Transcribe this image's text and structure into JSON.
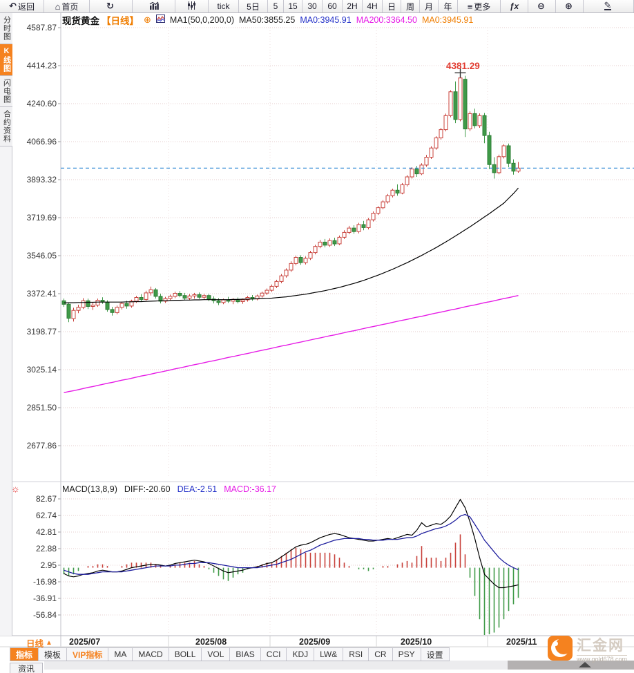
{
  "toolbar": {
    "back": "返回",
    "home": "首页",
    "tick": "tick",
    "d5": "5日",
    "m5": "5",
    "m15": "15",
    "m30": "30",
    "m60": "60",
    "h2": "2H",
    "h4": "4H",
    "day": "日",
    "week": "周",
    "month": "月",
    "year": "年",
    "more": "更多",
    "fx": "ƒx",
    "back_icon": "↶",
    "home_icon": "⌂",
    "refresh_icon": "↻",
    "menu_icon": "≡",
    "zoom_out_icon": "⊖",
    "zoom_in_icon": "⊕",
    "pen_icon": "✎"
  },
  "sidebar": {
    "tabs": [
      {
        "label": "分时图",
        "active": false
      },
      {
        "label": "K线图",
        "active": true
      },
      {
        "label": "闪电图",
        "active": false
      },
      {
        "label": "合约资料",
        "active": false
      }
    ],
    "news_tab": "资讯"
  },
  "legend": {
    "symbol": "现货黄金",
    "period": "【日线】",
    "add_icon": "⊕",
    "ma_group": "MA1(50,0,200,0)",
    "ma50": "MA50:3855.25",
    "ma0_blue": "MA0:3945.91",
    "ma200": "MA200:3364.50",
    "ma0_orange": "MA0:3945.91"
  },
  "macd_legend": {
    "name": "MACD(13,8,9)",
    "diff": "DIFF:-20.60",
    "dea": "DEA:-2.51",
    "macd": "MACD:-36.17"
  },
  "bottom_bar": {
    "period_flag": "日线",
    "period_flag_arrow": "▲",
    "tabs": [
      {
        "label": "指标",
        "state": "active"
      },
      {
        "label": "模板",
        "state": "normal"
      },
      {
        "label": "VIP指标",
        "state": "vip"
      },
      {
        "label": "MA",
        "state": "normal"
      },
      {
        "label": "MACD",
        "state": "normal"
      },
      {
        "label": "BOLL",
        "state": "normal"
      },
      {
        "label": "VOL",
        "state": "normal"
      },
      {
        "label": "BIAS",
        "state": "normal"
      },
      {
        "label": "CCI",
        "state": "normal"
      },
      {
        "label": "KDJ",
        "state": "normal"
      },
      {
        "label": "LW&",
        "state": "normal"
      },
      {
        "label": "RSI",
        "state": "normal"
      },
      {
        "label": "CR",
        "state": "normal"
      },
      {
        "label": "PSY",
        "state": "normal"
      },
      {
        "label": "设置",
        "state": "normal"
      }
    ]
  },
  "brand": {
    "name": "汇金网",
    "url": "www.gold678.com"
  },
  "colors": {
    "up": "#c8403a",
    "down": "#3f9a48",
    "down_edge": "#2e7d36",
    "ma50": "#000000",
    "ma200": "#e61ae6",
    "price_line": "#2f87d5",
    "diff": "#000000",
    "dea": "#1f1f9e",
    "hist_pos": "#c8403a",
    "hist_neg": "#3f9a48",
    "grid": "#e4cccc",
    "accent": "#f5821f"
  },
  "chart_data": [
    {
      "type": "candlestick",
      "title": "现货黄金【日线】",
      "yticks": [
        4587.87,
        4414.23,
        4240.6,
        4066.96,
        3893.32,
        3719.69,
        3546.05,
        3372.41,
        3198.77,
        3025.14,
        2851.5,
        2677.86
      ],
      "ylim": [
        2677.86,
        4587.87
      ],
      "x_labels": [
        "2025/07",
        "2025/08",
        "2025/09",
        "2025/10",
        "2025/11"
      ],
      "month_start_indices": [
        0,
        22,
        43,
        65,
        88
      ],
      "last_price": 3945.91,
      "peak_annotation": {
        "label": "4381.29",
        "index": 82,
        "value": 4381.29
      },
      "candles": [
        [
          3340,
          3350,
          3312,
          3324
        ],
        [
          3324,
          3332,
          3242,
          3260
        ],
        [
          3258,
          3308,
          3245,
          3296
        ],
        [
          3296,
          3322,
          3283,
          3310
        ],
        [
          3310,
          3352,
          3302,
          3340
        ],
        [
          3340,
          3350,
          3302,
          3314
        ],
        [
          3314,
          3332,
          3298,
          3320
        ],
        [
          3320,
          3350,
          3312,
          3342
        ],
        [
          3342,
          3356,
          3326,
          3334
        ],
        [
          3334,
          3342,
          3290,
          3300
        ],
        [
          3300,
          3312,
          3272,
          3286
        ],
        [
          3286,
          3318,
          3278,
          3310
        ],
        [
          3310,
          3336,
          3300,
          3328
        ],
        [
          3328,
          3340,
          3304,
          3316
        ],
        [
          3316,
          3345,
          3308,
          3338
        ],
        [
          3338,
          3362,
          3330,
          3355
        ],
        [
          3355,
          3370,
          3336,
          3346
        ],
        [
          3346,
          3386,
          3340,
          3376
        ],
        [
          3376,
          3405,
          3364,
          3390
        ],
        [
          3390,
          3398,
          3350,
          3360
        ],
        [
          3360,
          3372,
          3328,
          3338
        ],
        [
          3338,
          3358,
          3330,
          3350
        ],
        [
          3350,
          3368,
          3340,
          3360
        ],
        [
          3360,
          3382,
          3352,
          3374
        ],
        [
          3374,
          3384,
          3356,
          3364
        ],
        [
          3364,
          3376,
          3342,
          3352
        ],
        [
          3352,
          3370,
          3344,
          3362
        ],
        [
          3362,
          3376,
          3350,
          3368
        ],
        [
          3368,
          3378,
          3348,
          3356
        ],
        [
          3356,
          3372,
          3346,
          3364
        ],
        [
          3364,
          3372,
          3338,
          3348
        ],
        [
          3348,
          3360,
          3328,
          3340
        ],
        [
          3340,
          3352,
          3320,
          3332
        ],
        [
          3332,
          3350,
          3324,
          3344
        ],
        [
          3344,
          3358,
          3330,
          3338
        ],
        [
          3338,
          3352,
          3324,
          3346
        ],
        [
          3346,
          3355,
          3328,
          3336
        ],
        [
          3336,
          3350,
          3326,
          3344
        ],
        [
          3344,
          3362,
          3336,
          3355
        ],
        [
          3355,
          3366,
          3340,
          3348
        ],
        [
          3348,
          3368,
          3342,
          3362
        ],
        [
          3362,
          3382,
          3354,
          3375
        ],
        [
          3375,
          3396,
          3366,
          3388
        ],
        [
          3388,
          3414,
          3380,
          3406
        ],
        [
          3406,
          3436,
          3398,
          3428
        ],
        [
          3428,
          3462,
          3420,
          3454
        ],
        [
          3454,
          3488,
          3446,
          3480
        ],
        [
          3480,
          3520,
          3472,
          3510
        ],
        [
          3510,
          3546,
          3502,
          3538
        ],
        [
          3538,
          3548,
          3504,
          3514
        ],
        [
          3514,
          3542,
          3506,
          3534
        ],
        [
          3534,
          3568,
          3526,
          3560
        ],
        [
          3560,
          3596,
          3552,
          3588
        ],
        [
          3588,
          3618,
          3580,
          3608
        ],
        [
          3608,
          3622,
          3584,
          3594
        ],
        [
          3594,
          3625,
          3586,
          3615
        ],
        [
          3615,
          3628,
          3590,
          3600
        ],
        [
          3600,
          3638,
          3594,
          3630
        ],
        [
          3630,
          3662,
          3622,
          3652
        ],
        [
          3652,
          3682,
          3644,
          3672
        ],
        [
          3672,
          3685,
          3646,
          3656
        ],
        [
          3656,
          3696,
          3648,
          3688
        ],
        [
          3688,
          3705,
          3662,
          3674
        ],
        [
          3674,
          3718,
          3666,
          3710
        ],
        [
          3710,
          3748,
          3702,
          3740
        ],
        [
          3740,
          3772,
          3732,
          3765
        ],
        [
          3765,
          3800,
          3758,
          3792
        ],
        [
          3792,
          3828,
          3784,
          3820
        ],
        [
          3820,
          3852,
          3812,
          3845
        ],
        [
          3845,
          3872,
          3820,
          3832
        ],
        [
          3832,
          3878,
          3826,
          3870
        ],
        [
          3870,
          3914,
          3862,
          3906
        ],
        [
          3906,
          3950,
          3898,
          3942
        ],
        [
          3942,
          3956,
          3906,
          3920
        ],
        [
          3920,
          3968,
          3914,
          3960
        ],
        [
          3960,
          4006,
          3952,
          3996
        ],
        [
          3996,
          4046,
          3988,
          4038
        ],
        [
          4038,
          4092,
          4030,
          4084
        ],
        [
          4084,
          4130,
          4076,
          4122
        ],
        [
          4122,
          4195,
          4114,
          4186
        ],
        [
          4186,
          4302,
          4178,
          4295
        ],
        [
          4295,
          4342,
          4152,
          4168
        ],
        [
          4168,
          4381,
          4160,
          4358
        ],
        [
          4352,
          4368,
          4088,
          4125
        ],
        [
          4125,
          4205,
          4115,
          4195
        ],
        [
          4195,
          4218,
          4128,
          4140
        ],
        [
          4140,
          4196,
          4130,
          4186
        ],
        [
          4186,
          4198,
          4060,
          4095
        ],
        [
          4095,
          4112,
          3942,
          3962
        ],
        [
          3962,
          3996,
          3898,
          3925
        ],
        [
          3925,
          4008,
          3918,
          3998
        ],
        [
          3998,
          4055,
          3990,
          4048
        ],
        [
          4048,
          4058,
          3950,
          3968
        ],
        [
          3968,
          3986,
          3916,
          3932
        ],
        [
          3932,
          3974,
          3925,
          3946
        ]
      ],
      "ma50": [
        3330,
        3331,
        3331,
        3332,
        3332,
        3333,
        3333,
        3334,
        3334,
        3334,
        3334,
        3334,
        3334,
        3335,
        3335,
        3336,
        3336,
        3337,
        3338,
        3339,
        3340,
        3340,
        3341,
        3342,
        3342,
        3343,
        3343,
        3344,
        3344,
        3345,
        3345,
        3345,
        3345,
        3345,
        3345,
        3346,
        3346,
        3347,
        3347,
        3348,
        3349,
        3350,
        3351,
        3352,
        3354,
        3356,
        3358,
        3361,
        3364,
        3367,
        3370,
        3374,
        3378,
        3382,
        3386,
        3391,
        3396,
        3401,
        3407,
        3413,
        3419,
        3426,
        3433,
        3441,
        3449,
        3457,
        3466,
        3475,
        3484,
        3494,
        3504,
        3514,
        3525,
        3536,
        3547,
        3559,
        3571,
        3583,
        3596,
        3609,
        3622,
        3636,
        3650,
        3664,
        3678,
        3693,
        3708,
        3723,
        3738,
        3754,
        3770,
        3786,
        3808,
        3830,
        3855
      ],
      "ma200": [
        2920,
        2925,
        2929,
        2934,
        2939,
        2944,
        2948,
        2953,
        2958,
        2963,
        2967,
        2972,
        2977,
        2981,
        2986,
        2991,
        2996,
        3000,
        3005,
        3010,
        3014,
        3019,
        3024,
        3029,
        3033,
        3038,
        3043,
        3048,
        3052,
        3057,
        3062,
        3066,
        3071,
        3076,
        3081,
        3085,
        3090,
        3095,
        3099,
        3104,
        3109,
        3114,
        3118,
        3123,
        3128,
        3133,
        3137,
        3142,
        3147,
        3151,
        3156,
        3161,
        3166,
        3170,
        3175,
        3180,
        3184,
        3189,
        3194,
        3199,
        3203,
        3208,
        3213,
        3218,
        3222,
        3227,
        3232,
        3236,
        3241,
        3246,
        3251,
        3255,
        3260,
        3265,
        3269,
        3274,
        3279,
        3284,
        3288,
        3293,
        3298,
        3302,
        3307,
        3312,
        3317,
        3321,
        3326,
        3331,
        3335,
        3340,
        3345,
        3350,
        3354,
        3359,
        3364
      ]
    },
    {
      "type": "macd",
      "params": "MACD(13,8,9)",
      "yticks": [
        82.67,
        62.74,
        42.81,
        22.88,
        2.95,
        -16.98,
        -36.91,
        -56.84
      ],
      "diff": [
        -7,
        -10,
        -11,
        -10,
        -8,
        -7,
        -6,
        -4,
        -3,
        -4,
        -5,
        -5,
        -4,
        -2,
        0,
        1,
        2,
        3,
        4,
        4,
        3,
        2,
        3,
        5,
        6,
        7,
        8,
        9,
        8,
        7,
        5,
        2,
        -1,
        -4,
        -6,
        -5,
        -4,
        -3,
        -1,
        0,
        1,
        3,
        5,
        6,
        9,
        13,
        17,
        21,
        25,
        27,
        28,
        30,
        33,
        36,
        38,
        40,
        41,
        40,
        38,
        36,
        35,
        34,
        33,
        32,
        32,
        33,
        34,
        35,
        34,
        36,
        38,
        40,
        39,
        45,
        54,
        49,
        51,
        53,
        52,
        56,
        62,
        72,
        82,
        72,
        55,
        35,
        12,
        -8,
        -14,
        -20,
        -24,
        -24,
        -23,
        -22,
        -20.6
      ],
      "dea": [
        -3,
        -5,
        -7,
        -8,
        -8,
        -8,
        -7,
        -6,
        -5,
        -5,
        -5,
        -5,
        -5,
        -4,
        -3,
        -2,
        -1,
        0,
        1,
        2,
        2,
        2,
        2,
        3,
        3,
        4,
        5,
        5,
        6,
        6,
        6,
        5,
        4,
        3,
        2,
        1,
        0,
        0,
        0,
        0,
        0,
        1,
        2,
        3,
        4,
        6,
        8,
        10,
        13,
        16,
        19,
        21,
        24,
        27,
        29,
        31,
        33,
        34,
        35,
        35,
        35,
        35,
        34,
        34,
        33,
        33,
        33,
        34,
        34,
        34,
        35,
        36,
        36,
        38,
        41,
        43,
        45,
        47,
        48,
        50,
        53,
        57,
        62,
        64,
        61,
        52,
        43,
        33,
        26,
        19,
        12,
        7,
        3,
        0,
        -2.51
      ],
      "hist_formula": "2*(DIFF-DEA)"
    }
  ]
}
